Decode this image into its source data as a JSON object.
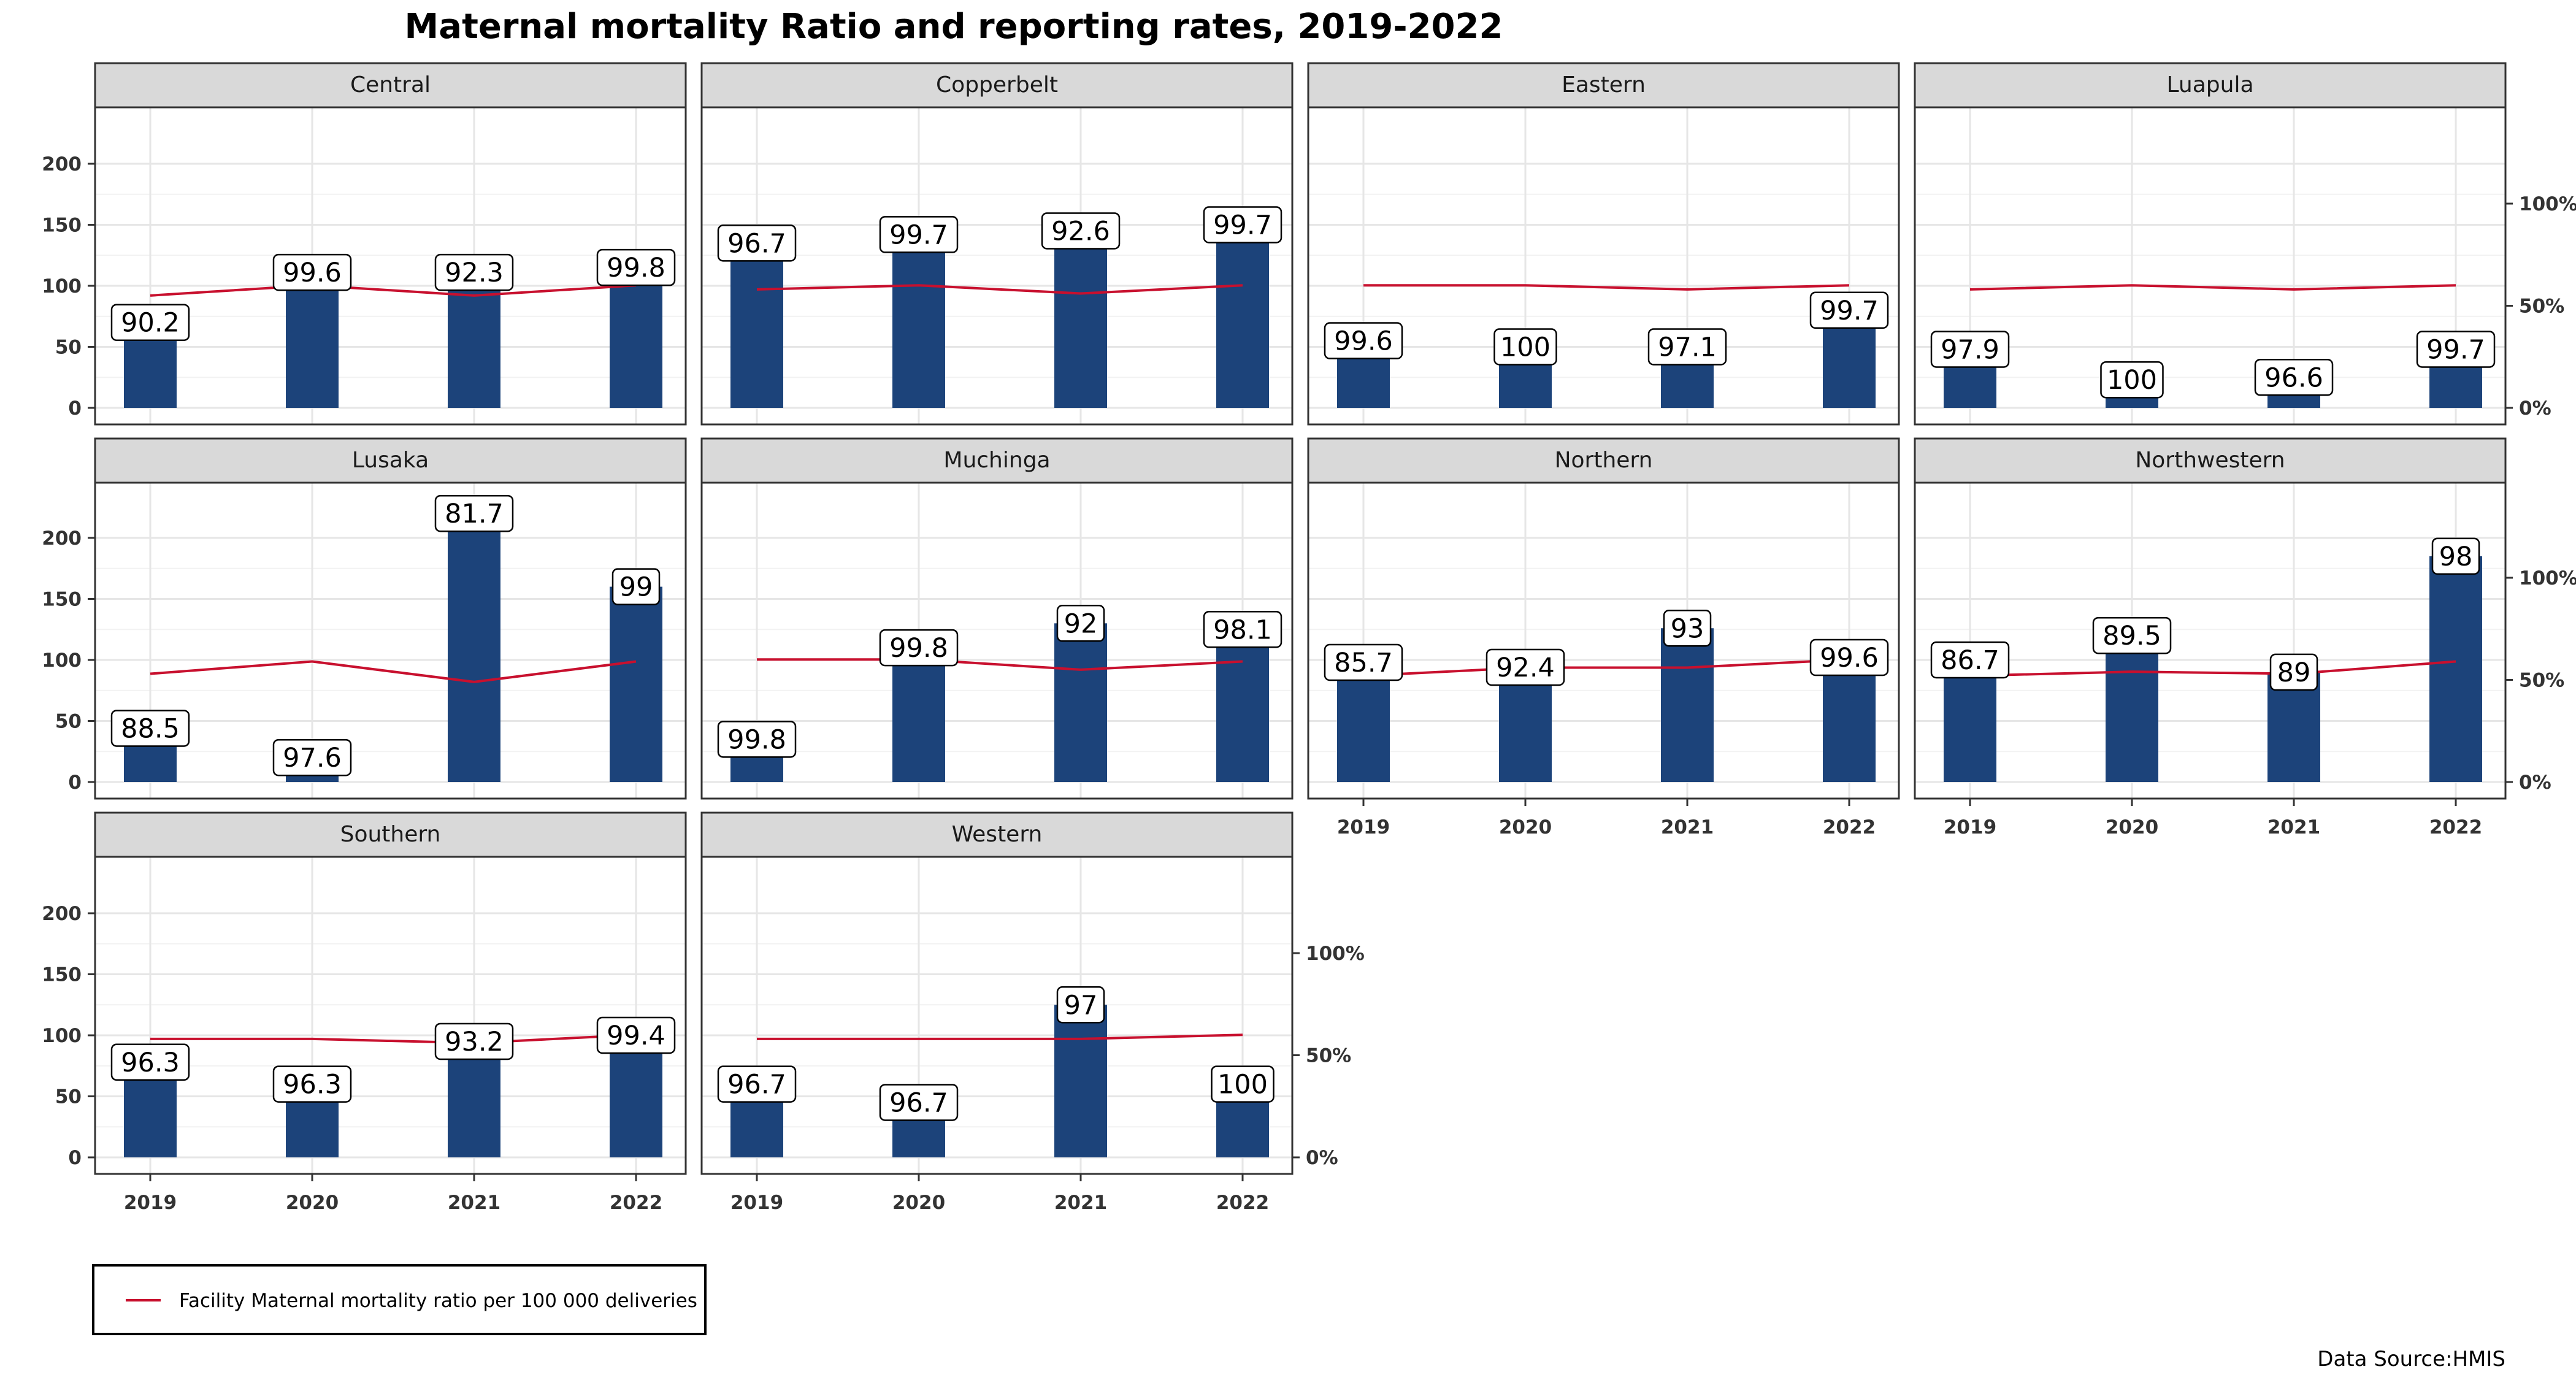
{
  "chart_data": {
    "type": "bar",
    "title": "Maternal mortality Ratio and reporting rates, 2019-2022",
    "categories": [
      "2019",
      "2020",
      "2021",
      "2022"
    ],
    "y_left": {
      "ticks": [
        0,
        50,
        100,
        150,
        200
      ],
      "ylim": [
        0,
        245
      ]
    },
    "y_right": {
      "ticks": [
        "0%",
        "50%",
        "100%"
      ],
      "ylim": [
        0,
        1.5
      ]
    },
    "grid": true,
    "legend": {
      "position": "bottom-left",
      "entries": [
        {
          "name": "Facility Maternal mortality ratio per 100 000 deliveries",
          "color": "#c8102e"
        }
      ]
    },
    "source_note": "Data Source:HMIS",
    "bar_color": "#1c437a",
    "line_color": "#c8102e",
    "panels": [
      {
        "name": "Central",
        "bars": [
          70,
          111,
          111,
          115
        ],
        "line": [
          0.55,
          0.6,
          0.55,
          0.6
        ],
        "labels": [
          "90.2",
          "99.6",
          "92.3",
          "99.8"
        ]
      },
      {
        "name": "Copperbelt",
        "bars": [
          135,
          142,
          145,
          150
        ],
        "line": [
          0.58,
          0.6,
          0.56,
          0.6
        ],
        "labels": [
          "96.7",
          "99.7",
          "92.6",
          "99.7"
        ]
      },
      {
        "name": "Eastern",
        "bars": [
          55,
          50,
          50,
          80
        ],
        "line": [
          0.6,
          0.6,
          0.58,
          0.6
        ],
        "labels": [
          "99.6",
          "100",
          "97.1",
          "99.7"
        ]
      },
      {
        "name": "Luapula",
        "bars": [
          48,
          23,
          25,
          48
        ],
        "line": [
          0.58,
          0.6,
          0.58,
          0.6
        ],
        "labels": [
          "97.9",
          "100",
          "96.6",
          "99.7"
        ]
      },
      {
        "name": "Lusaka",
        "bars": [
          44,
          20,
          220,
          160
        ],
        "line": [
          0.53,
          0.59,
          0.49,
          0.59
        ],
        "labels": [
          "88.5",
          "97.6",
          "81.7",
          "99"
        ]
      },
      {
        "name": "Muchinga",
        "bars": [
          35,
          110,
          130,
          125
        ],
        "line": [
          0.6,
          0.6,
          0.55,
          0.59
        ],
        "labels": [
          "99.8",
          "99.8",
          "92",
          "98.1"
        ]
      },
      {
        "name": "Northern",
        "bars": [
          98,
          94,
          126,
          102
        ],
        "line": [
          0.52,
          0.56,
          0.56,
          0.6
        ],
        "labels": [
          "85.7",
          "92.4",
          "93",
          "99.6"
        ]
      },
      {
        "name": "Northwestern",
        "bars": [
          100,
          120,
          90,
          185
        ],
        "line": [
          0.52,
          0.54,
          0.53,
          0.59
        ],
        "labels": [
          "86.7",
          "89.5",
          "89",
          "98"
        ]
      },
      {
        "name": "Southern",
        "bars": [
          78,
          60,
          95,
          100
        ],
        "line": [
          0.58,
          0.58,
          0.56,
          0.6
        ],
        "labels": [
          "96.3",
          "96.3",
          "93.2",
          "99.4"
        ]
      },
      {
        "name": "Western",
        "bars": [
          60,
          45,
          125,
          60
        ],
        "line": [
          0.58,
          0.58,
          0.58,
          0.6
        ],
        "labels": [
          "96.7",
          "96.7",
          "97",
          "100"
        ]
      }
    ]
  }
}
